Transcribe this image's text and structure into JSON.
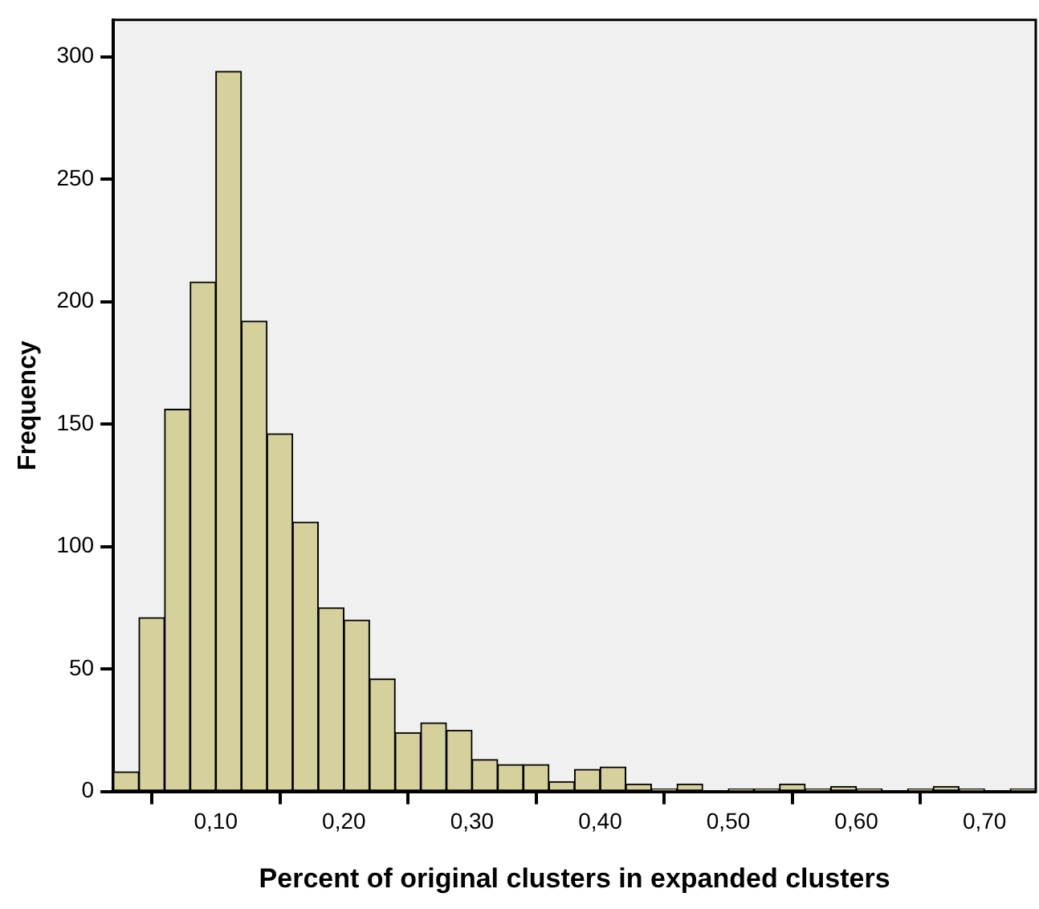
{
  "chart_data": {
    "type": "histogram",
    "xlabel": "Percent of original clusters in expanded clusters",
    "ylabel": "Frequency",
    "color": "#d5d09c",
    "bins": [
      0.02,
      0.04,
      0.06,
      0.08,
      0.1,
      0.12,
      0.14,
      0.16,
      0.18,
      0.2,
      0.22,
      0.24,
      0.26,
      0.28,
      0.3,
      0.32,
      0.34,
      0.36,
      0.38,
      0.4,
      0.42,
      0.44,
      0.46,
      0.48,
      0.5,
      0.52,
      0.54,
      0.56,
      0.58,
      0.6,
      0.62,
      0.64,
      0.66,
      0.68,
      0.7,
      0.72,
      0.74
    ],
    "values": [
      8,
      71,
      156,
      208,
      294,
      192,
      146,
      110,
      75,
      70,
      46,
      24,
      28,
      25,
      13,
      11,
      11,
      4,
      9,
      10,
      3,
      1,
      3,
      0,
      1,
      1,
      3,
      1,
      2,
      1,
      0,
      1,
      2,
      1,
      0,
      1
    ],
    "xlim": [
      0.02,
      0.74
    ],
    "xticks": [
      {
        "value": 0.1,
        "label": "0,10"
      },
      {
        "value": 0.2,
        "label": "0,20"
      },
      {
        "value": 0.3,
        "label": "0,30"
      },
      {
        "value": 0.4,
        "label": "0,40"
      },
      {
        "value": 0.5,
        "label": "0,50"
      },
      {
        "value": 0.6,
        "label": "0,60"
      },
      {
        "value": 0.7,
        "label": "0,70"
      }
    ],
    "ylim": [
      0,
      315
    ],
    "yticks": [
      0,
      50,
      100,
      150,
      200,
      250,
      300
    ],
    "grid": false,
    "legend": false
  }
}
